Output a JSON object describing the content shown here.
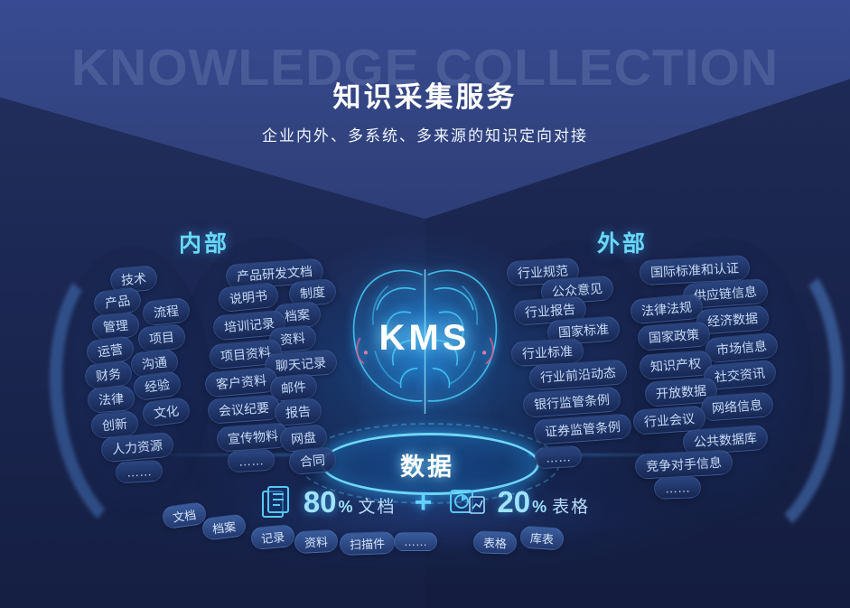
{
  "header": {
    "watermark": "KNOWLEDGE COLLECTION",
    "title": "知识采集服务",
    "subtitle": "企业内外、多系统、多来源的知识定向对接"
  },
  "center": {
    "kms": "KMS",
    "platform": "数据"
  },
  "internal": {
    "label": "内部",
    "tags": [
      "技术",
      "产品",
      "流程",
      "管理",
      "项目",
      "运营",
      "沟通",
      "财务",
      "经验",
      "法律",
      "文化",
      "创新",
      "人力资源",
      "……"
    ],
    "docs": [
      "产品研发文档",
      "说明书",
      "制度",
      "档案",
      "培训记录",
      "资料",
      "项目资料",
      "聊天记录",
      "客户资料",
      "邮件",
      "会议纪要",
      "报告",
      "宣传物料",
      "网盘",
      "……",
      "合同"
    ]
  },
  "external": {
    "label": "外部",
    "industry": [
      "行业规范",
      "公众意见",
      "行业报告",
      "国家标准",
      "行业标准",
      "行业前沿动态",
      "银行监管条例",
      "证券监管条例",
      "……"
    ],
    "sources": [
      "国际标准和认证",
      "供应链信息",
      "法律法规",
      "经济数据",
      "国家政策",
      "市场信息",
      "知识产权",
      "社交资讯",
      "开放数据",
      "网络信息",
      "行业会议",
      "公共数据库",
      "竞争对手信息",
      "……"
    ]
  },
  "stats": {
    "doc_icon": "document-stack-icon",
    "doc_value": "80",
    "doc_pct": "%",
    "doc_label": "文档",
    "plus": "+",
    "table_icon": "pie-table-icon",
    "table_value": "20",
    "table_pct": "%",
    "table_label": "表格"
  },
  "bottom_tags": [
    "文档",
    "档案",
    "记录",
    "资料",
    "扫描件",
    "……",
    "表格",
    "库表"
  ],
  "colors": {
    "accent_cyan": "#69d9f7",
    "pill_bg": "#1d2c55",
    "pill_text": "#c6daf6",
    "bg_top": "#384b92",
    "bg_bottom": "#1c2853",
    "glow_blue": "#2bb8ff"
  }
}
